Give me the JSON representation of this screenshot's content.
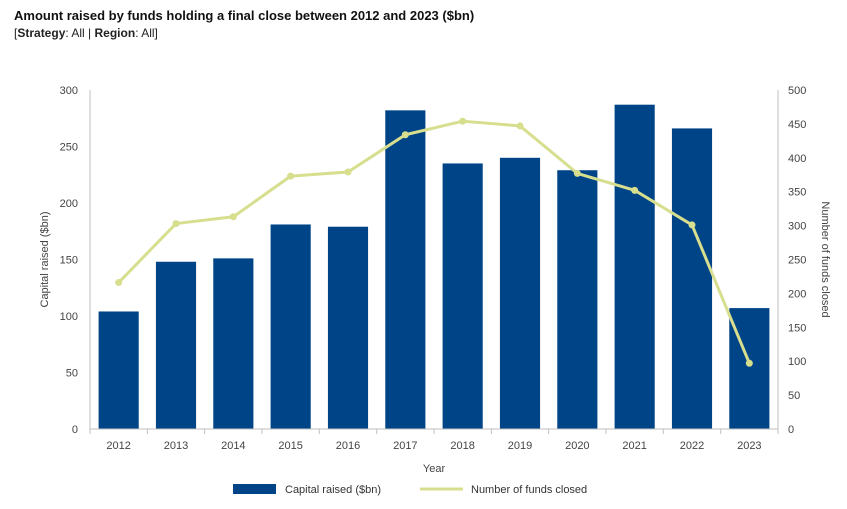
{
  "chart_data": {
    "type": "bar",
    "title": "Amount raised by funds holding a final close between 2012 and 2023 ($bn)",
    "subtitle": {
      "open": "[",
      "strategy_label": "Strategy",
      "strategy_value": ": All | ",
      "region_label": "Region",
      "region_value": ": All]"
    },
    "categories": [
      "2012",
      "2013",
      "2014",
      "2015",
      "2016",
      "2017",
      "2018",
      "2019",
      "2020",
      "2021",
      "2022",
      "2023"
    ],
    "series": [
      {
        "name": "Capital raised ($bn)",
        "type": "bar",
        "axis": "left",
        "color": "#004488",
        "values": [
          104,
          148,
          151,
          181,
          179,
          282,
          235,
          240,
          229,
          287,
          266,
          107
        ]
      },
      {
        "name": "Number of funds closed",
        "type": "line",
        "axis": "right",
        "color": "#D7DE8E",
        "values": [
          216,
          303,
          313,
          373,
          379,
          434,
          454,
          447,
          377,
          352,
          301,
          97
        ]
      }
    ],
    "xlabel": "Year",
    "ylabel": "Capital raised ($bn)",
    "y2label": "Number of funds closed",
    "ylim": [
      0,
      300
    ],
    "y2lim": [
      0,
      500
    ],
    "yticks": [
      0,
      50,
      100,
      150,
      200,
      250,
      300
    ],
    "y2ticks": [
      0,
      50,
      100,
      150,
      200,
      250,
      300,
      350,
      400,
      450,
      500
    ],
    "grid": false,
    "legend": "bottom"
  }
}
